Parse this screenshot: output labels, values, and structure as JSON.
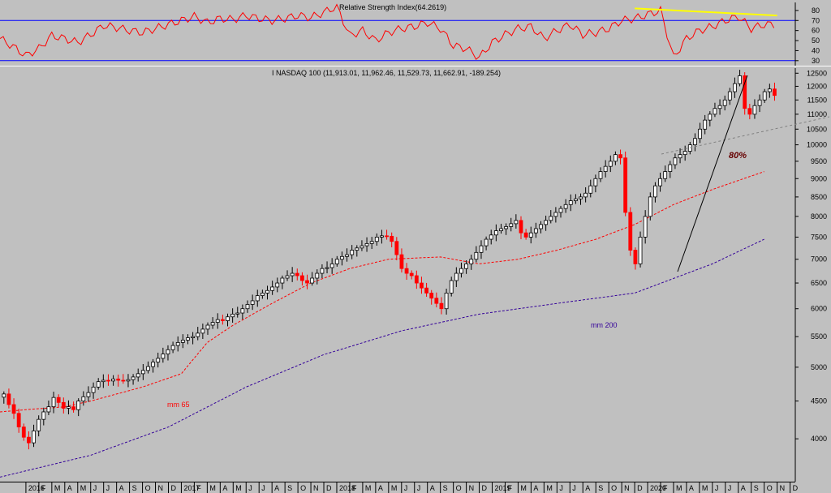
{
  "chart_data": [
    {
      "type": "line",
      "title": "Relative Strength Index(64.2619)",
      "ylim": [
        25,
        88
      ],
      "yticks": [
        30,
        40,
        50,
        60,
        70,
        80
      ],
      "reference_lines": [
        70,
        30
      ],
      "series": [
        {
          "color": "#ff0000",
          "x": [
            "2015-11",
            "2015-12",
            "2016-01",
            "2016-02",
            "2016-03",
            "2016-04",
            "2016-05",
            "2016-06",
            "2016-07",
            "2016-08",
            "2016-09",
            "2016-10",
            "2016-11",
            "2016-12",
            "2017-01",
            "2017-02",
            "2017-03",
            "2017-04",
            "2017-05",
            "2017-06",
            "2017-07",
            "2017-08",
            "2017-09",
            "2017-10",
            "2017-11",
            "2017-12",
            "2018-01",
            "2018-02",
            "2018-03",
            "2018-04",
            "2018-05",
            "2018-06",
            "2018-07",
            "2018-08",
            "2018-09",
            "2018-10",
            "2018-11",
            "2018-12",
            "2019-01",
            "2019-02",
            "2019-03",
            "2019-04",
            "2019-05",
            "2019-06",
            "2019-07",
            "2019-08",
            "2019-09",
            "2019-10",
            "2019-11",
            "2019-12",
            "2020-01",
            "2020-02",
            "2020-03",
            "2020-04",
            "2020-05",
            "2020-06",
            "2020-07",
            "2020-08",
            "2020-09",
            "2020-10"
          ],
          "values": [
            52,
            44,
            35,
            42,
            55,
            52,
            48,
            56,
            65,
            63,
            60,
            58,
            62,
            66,
            70,
            74,
            68,
            72,
            71,
            75,
            72,
            70,
            72,
            75,
            73,
            78,
            84,
            55,
            60,
            50,
            58,
            62,
            64,
            68,
            62,
            45,
            42,
            33,
            48,
            56,
            62,
            64,
            52,
            60,
            66,
            56,
            58,
            62,
            70,
            72,
            76,
            80,
            33,
            52,
            60,
            64,
            70,
            74,
            62,
            66
          ]
        }
      ],
      "trendline": {
        "color": "#ffff00",
        "from": [
          "2019-12",
          82
        ],
        "to": [
          "2020-11",
          75
        ]
      }
    },
    {
      "type": "candlestick",
      "title": "I NASDAQ 100 (11,913.01, 11,962.46, 11,529.73, 11,662.91, -189.254)",
      "scale": "log",
      "ylim": [
        3500,
        12700
      ],
      "yticks": [
        4000,
        4500,
        5000,
        5500,
        6000,
        6500,
        7000,
        7500,
        8000,
        8500,
        9000,
        9500,
        10000,
        10500,
        11000,
        11500,
        12000,
        12500
      ],
      "xticks": [
        "2016",
        "F",
        "M",
        "A",
        "M",
        "J",
        "J",
        "A",
        "S",
        "O",
        "N",
        "D",
        "2017",
        "F",
        "M",
        "A",
        "M",
        "J",
        "J",
        "A",
        "S",
        "O",
        "N",
        "D",
        "2018",
        "F",
        "M",
        "A",
        "M",
        "J",
        "J",
        "A",
        "S",
        "O",
        "N",
        "D",
        "2019",
        "F",
        "M",
        "A",
        "M",
        "J",
        "J",
        "A",
        "S",
        "O",
        "N",
        "D",
        "2020",
        "F",
        "M",
        "A",
        "M",
        "J",
        "J",
        "A",
        "S",
        "O",
        "N",
        "D"
      ],
      "weekly_closes": [
        4600,
        4450,
        4330,
        4150,
        4020,
        3950,
        4100,
        4250,
        4350,
        4420,
        4550,
        4480,
        4400,
        4420,
        4380,
        4500,
        4560,
        4620,
        4700,
        4780,
        4800,
        4790,
        4820,
        4800,
        4790,
        4810,
        4850,
        4900,
        4950,
        5010,
        5080,
        5140,
        5210,
        5280,
        5350,
        5400,
        5440,
        5480,
        5500,
        5560,
        5630,
        5700,
        5750,
        5800,
        5780,
        5850,
        5900,
        5920,
        6000,
        6080,
        6150,
        6250,
        6300,
        6350,
        6420,
        6500,
        6600,
        6650,
        6700,
        6650,
        6550,
        6500,
        6600,
        6700,
        6800,
        6820,
        6900,
        7000,
        7060,
        7100,
        7200,
        7250,
        7300,
        7350,
        7400,
        7500,
        7530,
        7520,
        7400,
        7100,
        6800,
        6700,
        6650,
        6500,
        6400,
        6300,
        6200,
        6100,
        6000,
        6300,
        6550,
        6700,
        6800,
        6900,
        7000,
        7150,
        7300,
        7450,
        7550,
        7650,
        7700,
        7750,
        7820,
        7900,
        7600,
        7500,
        7600,
        7700,
        7800,
        7900,
        8000,
        8100,
        8200,
        8300,
        8400,
        8450,
        8500,
        8600,
        8800,
        9000,
        9200,
        9350,
        9500,
        9700,
        9600,
        8100,
        7200,
        6900,
        7500,
        8000,
        8500,
        8800,
        9000,
        9200,
        9400,
        9600,
        9700,
        9800,
        10000,
        10200,
        10500,
        10800,
        11000,
        11200,
        11300,
        11500,
        11800,
        12100,
        12400,
        11200,
        11000,
        11300,
        11500,
        11800,
        11900,
        11663
      ],
      "moving_averages": [
        {
          "label": "mm 65",
          "color": "#ff0000",
          "points": [
            [
              "2015-11",
              4350
            ],
            [
              "2016-01",
              4380
            ],
            [
              "2016-04",
              4420
            ],
            [
              "2016-06",
              4500
            ],
            [
              "2016-10",
              4700
            ],
            [
              "2017-01",
              4900
            ],
            [
              "2017-03",
              5400
            ],
            [
              "2017-05",
              5700
            ],
            [
              "2017-08",
              6100
            ],
            [
              "2017-11",
              6500
            ],
            [
              "2018-02",
              6800
            ],
            [
              "2018-05",
              7000
            ],
            [
              "2018-09",
              7050
            ],
            [
              "2018-12",
              6900
            ],
            [
              "2019-03",
              7000
            ],
            [
              "2019-06",
              7200
            ],
            [
              "2019-09",
              7450
            ],
            [
              "2019-12",
              7800
            ],
            [
              "2020-03",
              8300
            ],
            [
              "2020-06",
              8700
            ],
            [
              "2020-10",
              9200
            ]
          ]
        },
        {
          "label": "mm 200",
          "color": "#330099",
          "points": [
            [
              "2015-11",
              3550
            ],
            [
              "2016-06",
              3800
            ],
            [
              "2016-12",
              4150
            ],
            [
              "2017-06",
              4700
            ],
            [
              "2017-12",
              5200
            ],
            [
              "2018-06",
              5600
            ],
            [
              "2018-12",
              5900
            ],
            [
              "2019-06",
              6100
            ],
            [
              "2019-12",
              6300
            ],
            [
              "2020-06",
              6900
            ],
            [
              "2020-10",
              7450
            ]
          ]
        }
      ],
      "annotations": [
        "80%"
      ]
    }
  ]
}
